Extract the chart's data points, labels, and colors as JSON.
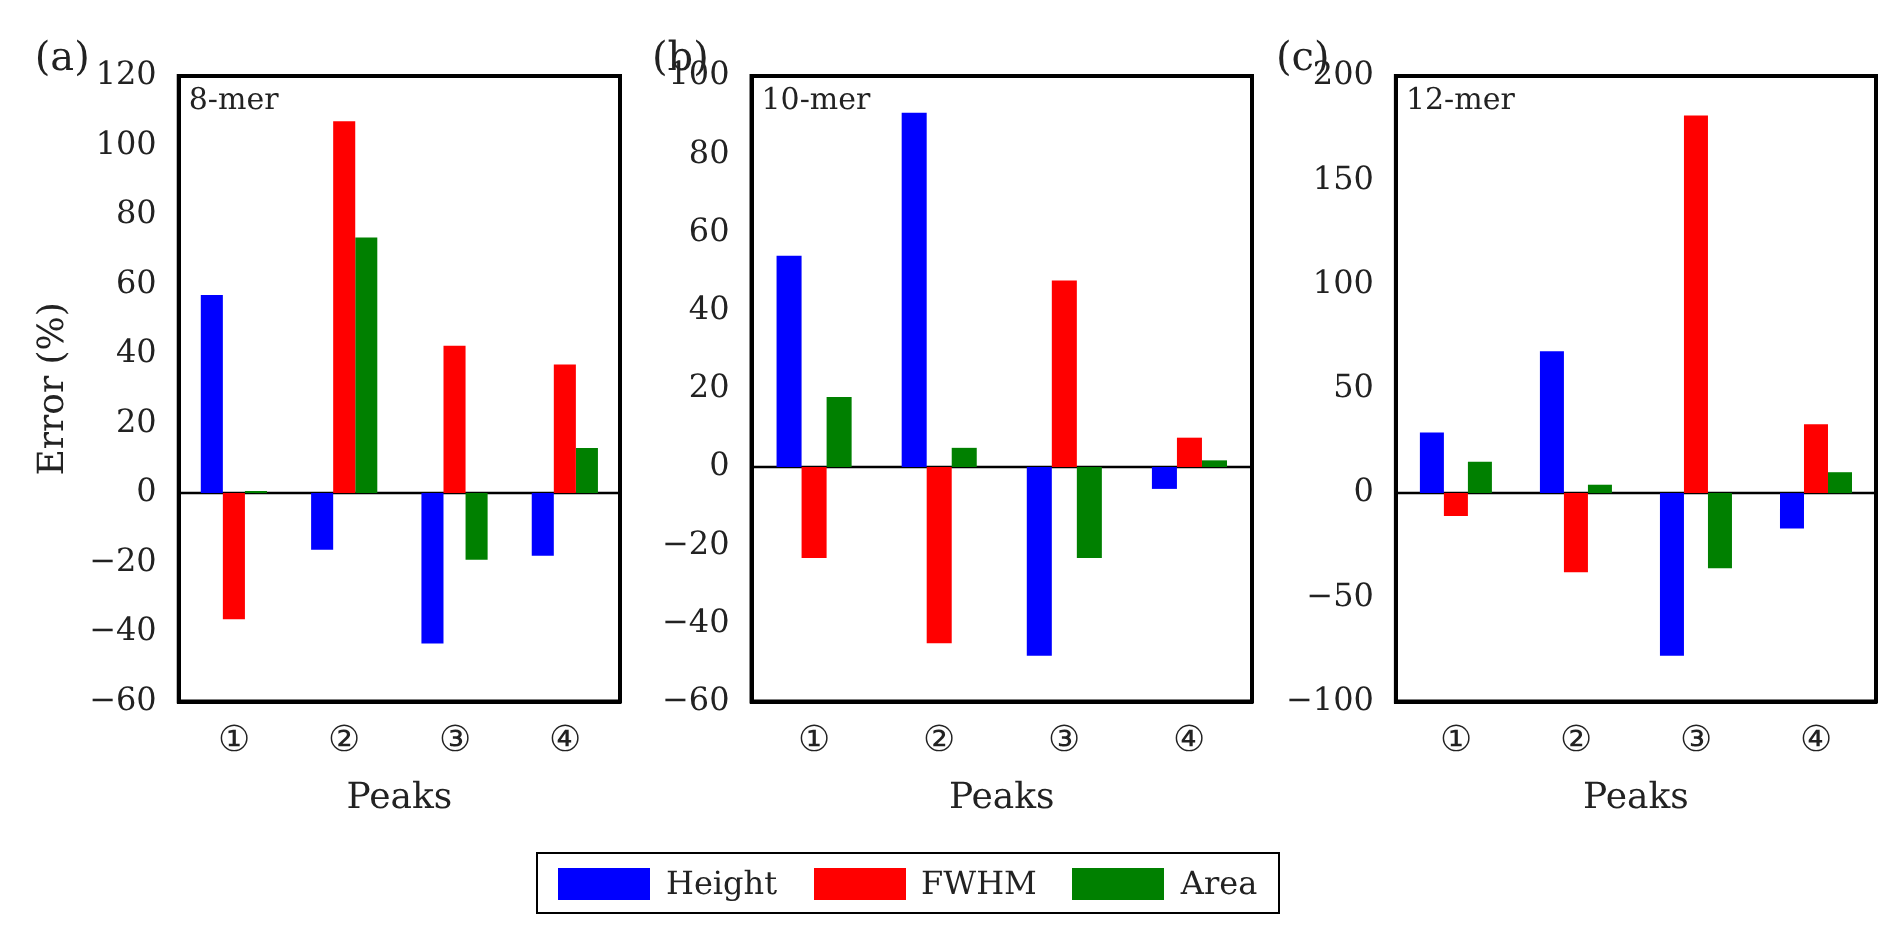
{
  "chart_data": [
    {
      "type": "bar",
      "categories": [
        "①",
        "②",
        "③",
        "④"
      ],
      "xlabel": "Peaks",
      "ylabel": "Error (%)",
      "annotations": [
        "(a)",
        "8-mer"
      ],
      "ylim": [
        -60,
        120
      ],
      "yticks": [
        -60,
        -40,
        -20,
        0,
        20,
        40,
        60,
        80,
        100,
        120
      ],
      "grid": false,
      "legend": "bottom",
      "ref_lines": [
        {
          "axis": "y",
          "value": 0,
          "color": "#000000"
        }
      ],
      "series": [
        {
          "name": "Height",
          "color": "#0000ff",
          "values": [
            57,
            -16.3,
            -43.3,
            -18
          ]
        },
        {
          "name": "FWHM",
          "color": "#ff0000",
          "values": [
            -36.3,
            107,
            42.4,
            37
          ]
        },
        {
          "name": "Area",
          "color": "#008000",
          "values": [
            0.6,
            73.5,
            -19.2,
            13
          ]
        }
      ]
    },
    {
      "type": "bar",
      "categories": [
        "①",
        "②",
        "③",
        "④"
      ],
      "xlabel": "Peaks",
      "annotations": [
        "(b)",
        "10-mer"
      ],
      "ylim": [
        -60,
        100
      ],
      "yticks": [
        -60,
        -40,
        -20,
        0,
        20,
        40,
        60,
        80,
        100
      ],
      "grid": false,
      "ref_lines": [
        {
          "axis": "y",
          "value": 0,
          "color": "#000000"
        }
      ],
      "series": [
        {
          "color": "#0000ff",
          "values": [
            54,
            90.6,
            -48.3,
            -5.6
          ]
        },
        {
          "color": "#ff0000",
          "values": [
            -23.3,
            -45.1,
            47.7,
            7.5
          ]
        },
        {
          "color": "#008000",
          "values": [
            17.9,
            4.9,
            -23.3,
            1.7
          ]
        }
      ]
    },
    {
      "type": "bar",
      "categories": [
        "①",
        "②",
        "③",
        "④"
      ],
      "xlabel": "Peaks",
      "annotations": [
        "(c)",
        "12-mer"
      ],
      "ylim": [
        -100,
        200
      ],
      "yticks": [
        -100,
        -50,
        0,
        50,
        100,
        150,
        200
      ],
      "grid": false,
      "ref_lines": [
        {
          "axis": "y",
          "value": 0,
          "color": "#000000"
        }
      ],
      "series": [
        {
          "color": "#0000ff",
          "values": [
            29,
            68,
            -78,
            -17
          ]
        },
        {
          "color": "#ff0000",
          "values": [
            -11,
            -38,
            181,
            33
          ]
        },
        {
          "color": "#008000",
          "values": [
            15,
            4,
            -36,
            10
          ]
        }
      ]
    }
  ]
}
